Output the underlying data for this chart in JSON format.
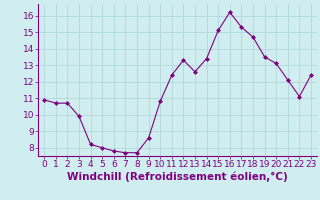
{
  "x": [
    0,
    1,
    2,
    3,
    4,
    5,
    6,
    7,
    8,
    9,
    10,
    11,
    12,
    13,
    14,
    15,
    16,
    17,
    18,
    19,
    20,
    21,
    22,
    23
  ],
  "y": [
    10.9,
    10.7,
    10.7,
    9.9,
    8.2,
    8.0,
    7.8,
    7.7,
    7.7,
    8.6,
    10.8,
    12.4,
    13.3,
    12.6,
    13.4,
    15.1,
    16.2,
    15.3,
    14.7,
    13.5,
    13.1,
    12.1,
    11.1,
    12.4
  ],
  "xlabel": "Windchill (Refroidissement éolien,°C)",
  "ylim": [
    7.5,
    16.7
  ],
  "xlim": [
    -0.5,
    23.5
  ],
  "yticks": [
    8,
    9,
    10,
    11,
    12,
    13,
    14,
    15,
    16
  ],
  "xticks": [
    0,
    1,
    2,
    3,
    4,
    5,
    6,
    7,
    8,
    9,
    10,
    11,
    12,
    13,
    14,
    15,
    16,
    17,
    18,
    19,
    20,
    21,
    22,
    23
  ],
  "line_color": "#800080",
  "marker_color": "#800080",
  "bg_color": "#d0eef0",
  "grid_color": "#b0d8dc",
  "xlabel_fontsize": 7.5,
  "tick_fontsize": 6.5
}
